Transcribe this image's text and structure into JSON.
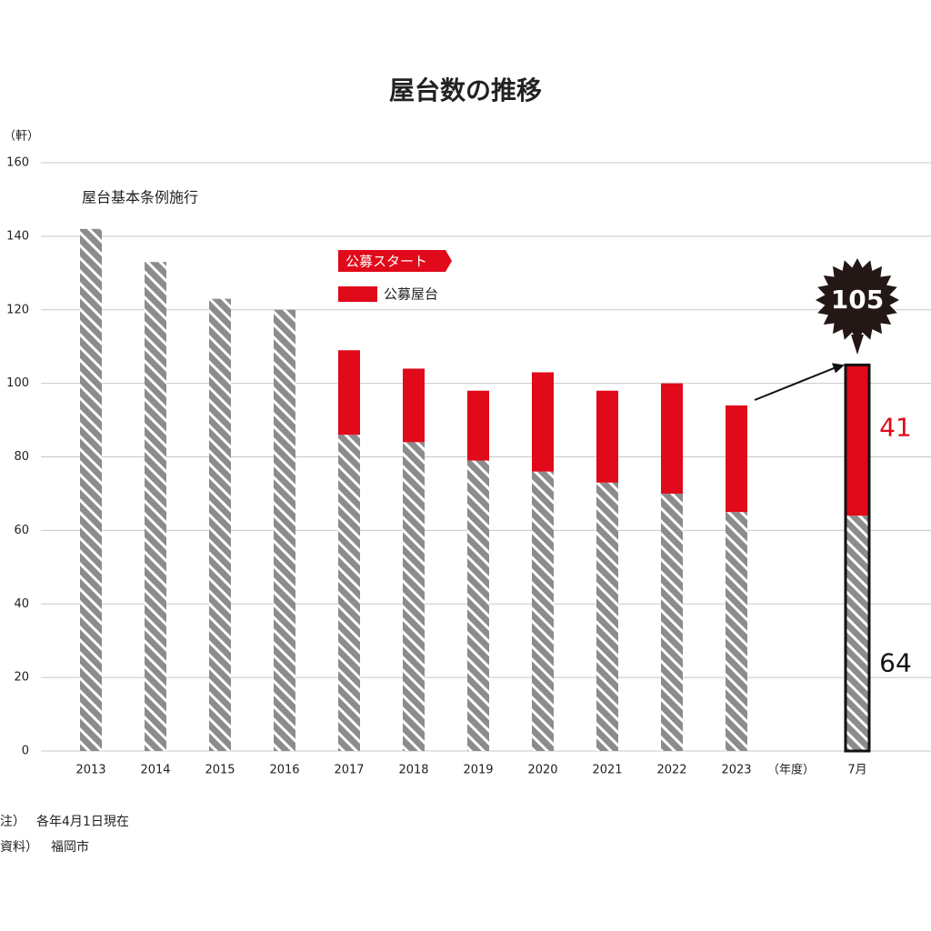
{
  "chart_data": {
    "type": "stacked-bar",
    "title": "屋台数の推移",
    "y_label": "（軒）",
    "x_label": "（年度）",
    "categories": [
      "2013",
      "2014",
      "2015",
      "2016",
      "2017",
      "2018",
      "2019",
      "2020",
      "2021",
      "2022",
      "2023",
      "7月"
    ],
    "series": [
      {
        "color": "#8c8c8c",
        "values": [
          142,
          133,
          123,
          120,
          86,
          84,
          79,
          76,
          73,
          70,
          65,
          64
        ]
      },
      {
        "name": "公募屋台",
        "color": "#e00a1a",
        "values": [
          null,
          null,
          null,
          null,
          23,
          20,
          19,
          27,
          25,
          30,
          29,
          41
        ]
      }
    ],
    "ylim": [
      0,
      160
    ],
    "yticks": [
      0,
      20,
      40,
      60,
      80,
      100,
      120,
      140,
      160
    ],
    "grid": true,
    "annotations": [
      "屋台基本条例施行",
      "公募スタート"
    ],
    "callout": 105,
    "notes": [
      [
        "注）",
        "各年4月1日現在"
      ],
      [
        "資料）",
        "福岡市"
      ]
    ]
  }
}
